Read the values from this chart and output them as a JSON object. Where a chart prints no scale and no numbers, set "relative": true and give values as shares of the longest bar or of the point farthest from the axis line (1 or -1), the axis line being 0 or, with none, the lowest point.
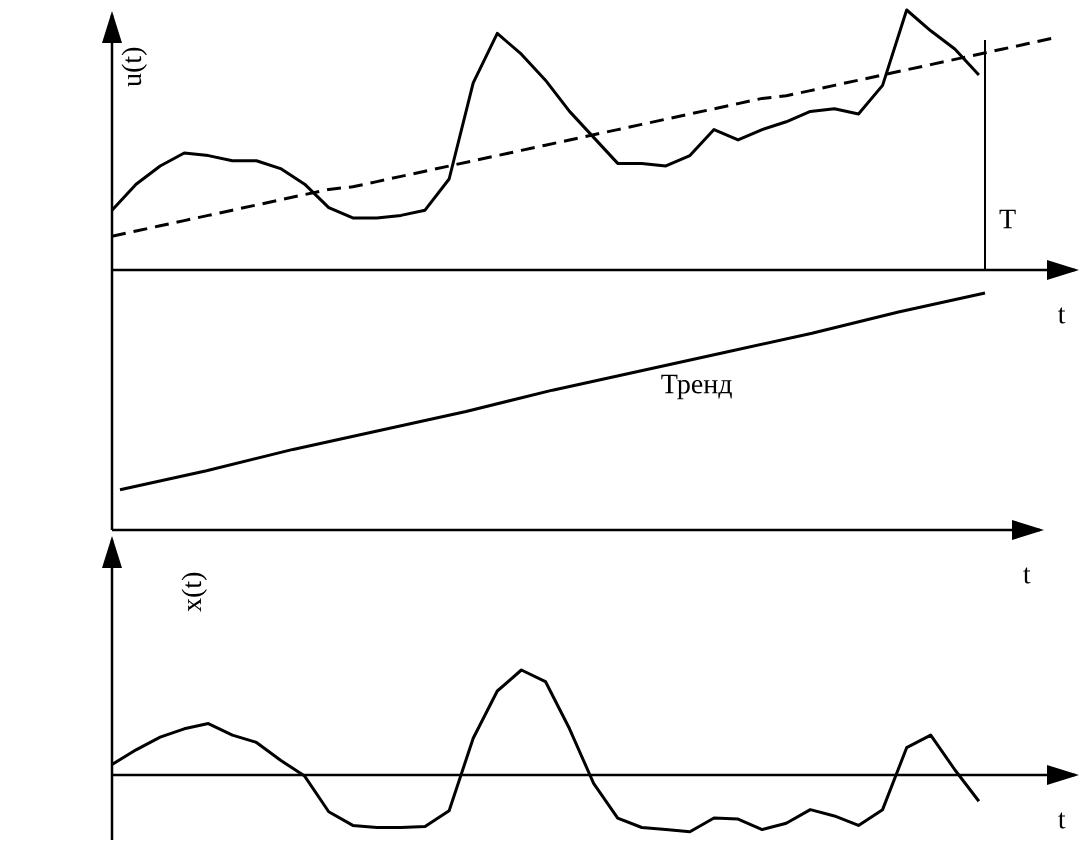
{
  "chart_data": [
    {
      "type": "line",
      "relative": true,
      "ylabel": "u(t)",
      "xlabel": "t",
      "categories": [
        null,
        null,
        null,
        null,
        null,
        null,
        null,
        null,
        null,
        null,
        null,
        null,
        null,
        null,
        null,
        null,
        null,
        null,
        null,
        null,
        null,
        null,
        null,
        null,
        null,
        null,
        null,
        null,
        null,
        null,
        null,
        null,
        null,
        null,
        null,
        null,
        null,
        null,
        null,
        null
      ],
      "series": [
        {
          "color": "#000000",
          "line_style": "solid",
          "values": [
            0.23,
            0.33,
            0.4,
            0.45,
            0.44,
            0.42,
            0.42,
            0.39,
            0.33,
            0.24,
            0.2,
            0.2,
            0.21,
            0.23,
            0.35,
            0.72,
            0.91,
            0.83,
            0.73,
            0.61,
            0.51,
            0.41,
            0.41,
            0.4,
            0.44,
            0.54,
            0.5,
            0.54,
            0.57,
            0.61,
            0.62,
            0.6,
            0.71,
            1,
            0.92,
            0.85,
            0.75,
            null,
            null,
            null
          ]
        },
        {
          "color": "#000000",
          "line_style": "dashed",
          "values": [
            0.13,
            0.15,
            0.17,
            0.19,
            0.21,
            0.23,
            0.25,
            0.27,
            0.29,
            0.31,
            0.32,
            0.34,
            0.36,
            0.38,
            0.4,
            0.42,
            0.44,
            0.46,
            0.48,
            0.5,
            0.52,
            0.54,
            0.56,
            0.58,
            0.6,
            0.62,
            0.64,
            0.66,
            0.67,
            0.69,
            0.71,
            0.73,
            0.75,
            0.77,
            0.79,
            0.81,
            0.83,
            0.85,
            0.87,
            0.89
          ]
        }
      ],
      "annotations": [
        "T"
      ]
    },
    {
      "type": "line",
      "relative": true,
      "xlabel": "t",
      "categories": [
        null,
        null,
        null,
        null,
        null,
        null,
        null,
        null,
        null,
        null,
        null
      ],
      "series": [
        {
          "color": "#000000",
          "line_style": "solid",
          "values": [
            0.17,
            0.25,
            0.34,
            0.42,
            0.5,
            0.59,
            0.67,
            0.75,
            0.83,
            0.92,
            1
          ]
        }
      ],
      "annotations": [
        "Тренд"
      ]
    },
    {
      "type": "line",
      "relative": true,
      "ylabel": "x(t)",
      "xlabel": "t",
      "categories": [
        null,
        null,
        null,
        null,
        null,
        null,
        null,
        null,
        null,
        null,
        null,
        null,
        null,
        null,
        null,
        null,
        null,
        null,
        null,
        null,
        null,
        null,
        null,
        null,
        null,
        null,
        null,
        null,
        null,
        null,
        null,
        null,
        null,
        null,
        null,
        null,
        null
      ],
      "series": [
        {
          "color": "#000000",
          "line_style": "solid",
          "values": [
            0.1,
            0.24,
            0.36,
            0.44,
            0.49,
            0.38,
            0.31,
            0.14,
            -0.01,
            -0.35,
            -0.48,
            -0.5,
            -0.5,
            -0.49,
            -0.34,
            0.35,
            0.8,
            1,
            0.89,
            0.44,
            -0.08,
            -0.41,
            -0.5,
            -0.52,
            -0.54,
            -0.41,
            -0.42,
            -0.52,
            -0.46,
            -0.33,
            -0.39,
            -0.48,
            -0.33,
            0.26,
            0.38,
            0.05,
            -0.25
          ]
        }
      ]
    }
  ]
}
